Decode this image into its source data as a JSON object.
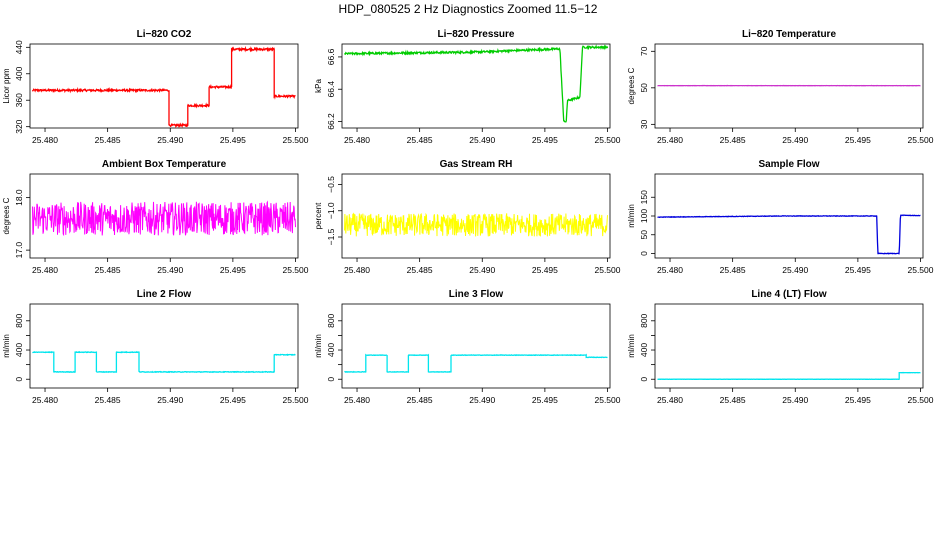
{
  "page": {
    "title": "HDP_080525  2 Hz Diagnostics Zoomed 11.5−12"
  },
  "chart_data": [
    {
      "type": "line",
      "title": "Li−820 CO2",
      "ylabel": "Licor ppm",
      "xlim": [
        25.4788,
        25.5002
      ],
      "ylim": [
        318,
        445
      ],
      "xticks": [
        25.48,
        25.485,
        25.49,
        25.495,
        25.5
      ],
      "xtick_labels": [
        "25.480",
        "25.485",
        "25.490",
        "25.495",
        "25.500"
      ],
      "yticks": [
        320,
        360,
        400,
        440
      ],
      "ytick_labels": [
        "320",
        "360",
        "400",
        "440"
      ],
      "color": "#ff0000",
      "noise": 1.5,
      "x": [
        25.479,
        25.4899,
        25.4899,
        25.4914,
        25.4914,
        25.4931,
        25.4931,
        25.4949,
        25.4949,
        25.4983,
        25.4983,
        25.5
      ],
      "y": [
        375,
        375,
        322,
        322,
        352,
        352,
        380,
        380,
        437,
        437,
        366,
        366
      ]
    },
    {
      "type": "line",
      "title": "Li−820 Pressure",
      "ylabel": "kPa",
      "xlim": [
        25.4788,
        25.5002
      ],
      "ylim": [
        66.16,
        66.68
      ],
      "xticks": [
        25.48,
        25.485,
        25.49,
        25.495,
        25.5
      ],
      "xtick_labels": [
        "25.480",
        "25.485",
        "25.490",
        "25.495",
        "25.500"
      ],
      "yticks": [
        66.2,
        66.4,
        66.6
      ],
      "ytick_labels": [
        "66.2",
        "66.4",
        "66.6"
      ],
      "color": "#00cc00",
      "noise": 0.006,
      "x": [
        25.479,
        25.4895,
        25.4962,
        25.4965,
        25.4967,
        25.4968,
        25.4978,
        25.498,
        25.4985,
        25.5
      ],
      "y": [
        66.62,
        66.63,
        66.65,
        66.21,
        66.19,
        66.33,
        66.35,
        66.66,
        66.66,
        66.66
      ]
    },
    {
      "type": "line",
      "title": "Li−820 Temperature",
      "ylabel": "degrees C",
      "xlim": [
        25.4788,
        25.5002
      ],
      "ylim": [
        28,
        74
      ],
      "xticks": [
        25.48,
        25.485,
        25.49,
        25.495,
        25.5
      ],
      "xtick_labels": [
        "25.480",
        "25.485",
        "25.490",
        "25.495",
        "25.500"
      ],
      "yticks": [
        30,
        50,
        70
      ],
      "ytick_labels": [
        "30",
        "50",
        "70"
      ],
      "color": "#cc33cc",
      "noise": 0.05,
      "x": [
        25.479,
        25.5
      ],
      "y": [
        51.2,
        51.2
      ]
    },
    {
      "type": "line",
      "title": "Ambient Box Temperature",
      "ylabel": "degrees C",
      "xlim": [
        25.4788,
        25.5002
      ],
      "ylim": [
        16.85,
        18.45
      ],
      "xticks": [
        25.48,
        25.485,
        25.49,
        25.495,
        25.5
      ],
      "xtick_labels": [
        "25.480",
        "25.485",
        "25.490",
        "25.495",
        "25.500"
      ],
      "yticks": [
        17.0,
        18.0
      ],
      "ytick_labels": [
        "17.0",
        "18.0"
      ],
      "color": "#ff00ff",
      "noise": 0.32,
      "x": [
        25.479,
        25.5
      ],
      "y": [
        17.6,
        17.6
      ]
    },
    {
      "type": "line",
      "title": "Gas Stream RH",
      "ylabel": "percent",
      "xlim": [
        25.4788,
        25.5002
      ],
      "ylim": [
        -1.9,
        -0.3
      ],
      "xticks": [
        25.48,
        25.485,
        25.49,
        25.495,
        25.5
      ],
      "xtick_labels": [
        "25.480",
        "25.485",
        "25.490",
        "25.495",
        "25.500"
      ],
      "yticks": [
        -1.5,
        -1.0,
        -0.5
      ],
      "ytick_labels": [
        "−1.5",
        "−1.0",
        "−0.5"
      ],
      "color": "#ffff00",
      "noise": 0.22,
      "x": [
        25.479,
        25.5
      ],
      "y": [
        -1.27,
        -1.27
      ]
    },
    {
      "type": "line",
      "title": "Sample Flow",
      "ylabel": "ml/min",
      "xlim": [
        25.4788,
        25.5002
      ],
      "ylim": [
        -12,
        212
      ],
      "xticks": [
        25.48,
        25.485,
        25.49,
        25.495,
        25.5
      ],
      "xtick_labels": [
        "25.480",
        "25.485",
        "25.490",
        "25.495",
        "25.500"
      ],
      "yticks": [
        0,
        50,
        100,
        150
      ],
      "ytick_labels": [
        "0",
        "50",
        "100",
        "150"
      ],
      "color": "#0000dd",
      "noise": 0.6,
      "x": [
        25.479,
        25.489,
        25.4965,
        25.4966,
        25.4983,
        25.4984,
        25.5
      ],
      "y": [
        97,
        100,
        100,
        0,
        0,
        102,
        101
      ]
    },
    {
      "type": "line",
      "title": "Line 2 Flow",
      "ylabel": "ml/min",
      "xlim": [
        25.4788,
        25.5002
      ],
      "ylim": [
        -120,
        1030
      ],
      "xticks": [
        25.48,
        25.485,
        25.49,
        25.495,
        25.5
      ],
      "xtick_labels": [
        "25.480",
        "25.485",
        "25.490",
        "25.495",
        "25.500"
      ],
      "yticks": [
        0,
        200,
        400,
        600,
        800
      ],
      "ytick_labels": [
        "0",
        "",
        "400",
        "",
        "800"
      ],
      "color": "#00e5ee",
      "noise": 4,
      "x": [
        25.479,
        25.4807,
        25.4807,
        25.4824,
        25.4824,
        25.4841,
        25.4841,
        25.4857,
        25.4857,
        25.4875,
        25.4875,
        25.4983,
        25.4983,
        25.5
      ],
      "y": [
        370,
        370,
        100,
        100,
        370,
        370,
        100,
        100,
        370,
        370,
        100,
        100,
        335,
        335
      ]
    },
    {
      "type": "line",
      "title": "Line 3 Flow",
      "ylabel": "ml/min",
      "xlim": [
        25.4788,
        25.5002
      ],
      "ylim": [
        -120,
        1030
      ],
      "xticks": [
        25.48,
        25.485,
        25.49,
        25.495,
        25.5
      ],
      "xtick_labels": [
        "25.480",
        "25.485",
        "25.490",
        "25.495",
        "25.500"
      ],
      "yticks": [
        0,
        200,
        400,
        600,
        800
      ],
      "ytick_labels": [
        "0",
        "",
        "400",
        "",
        "800"
      ],
      "color": "#00e5ee",
      "noise": 3,
      "x": [
        25.479,
        25.4807,
        25.4807,
        25.4824,
        25.4824,
        25.4841,
        25.4841,
        25.4857,
        25.4857,
        25.4875,
        25.4875,
        25.4983,
        25.4983,
        25.5
      ],
      "y": [
        100,
        100,
        330,
        330,
        100,
        100,
        330,
        330,
        100,
        100,
        330,
        330,
        300,
        300
      ]
    },
    {
      "type": "line",
      "title": "Line 4 (LT) Flow",
      "ylabel": "ml/min",
      "xlim": [
        25.4788,
        25.5002
      ],
      "ylim": [
        -120,
        1030
      ],
      "xticks": [
        25.48,
        25.485,
        25.49,
        25.495,
        25.5
      ],
      "xtick_labels": [
        "25.480",
        "25.485",
        "25.490",
        "25.495",
        "25.500"
      ],
      "yticks": [
        0,
        200,
        400,
        600,
        800
      ],
      "ytick_labels": [
        "0",
        "",
        "400",
        "",
        "800"
      ],
      "color": "#00e5ee",
      "noise": 1,
      "x": [
        25.479,
        25.4983,
        25.4983,
        25.5
      ],
      "y": [
        0,
        0,
        90,
        90
      ]
    }
  ]
}
